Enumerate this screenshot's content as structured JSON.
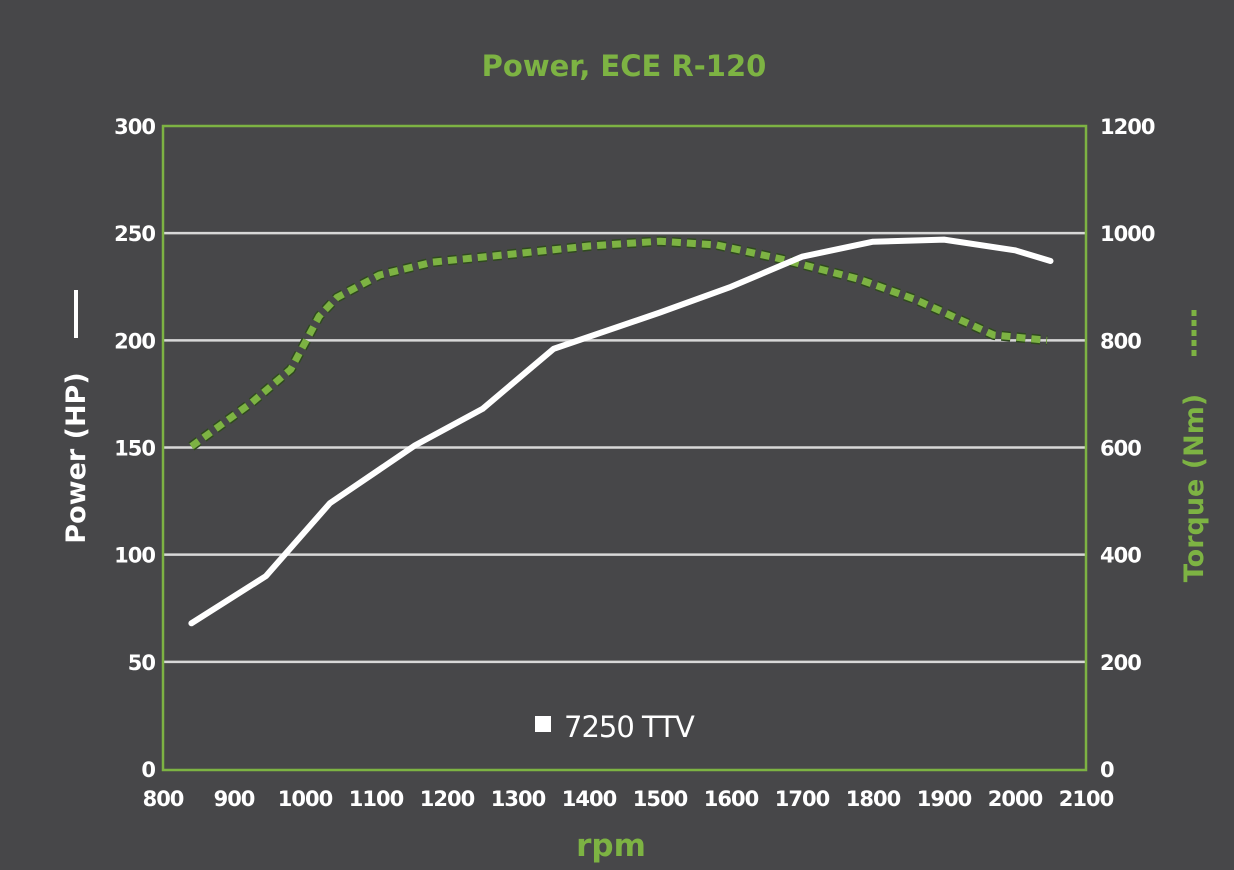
{
  "chart_data": {
    "type": "line",
    "title": "Power, ECE R-120",
    "xlabel": "rpm",
    "ylabel": "Power (HP)",
    "ylabel_right": "Torque (Nm)",
    "xlim": [
      800,
      2100
    ],
    "ylim": [
      0,
      300
    ],
    "ylim_right": [
      0,
      1200
    ],
    "x_ticks": [
      "800",
      "900",
      "1000",
      "1100",
      "1200",
      "1300",
      "1400",
      "1500",
      "1600",
      "1700",
      "1800",
      "1900",
      "2000",
      "2100"
    ],
    "y_ticks": [
      "0",
      "50",
      "100",
      "150",
      "200",
      "250",
      "300"
    ],
    "y_ticks_right": [
      "0",
      "200",
      "400",
      "600",
      "800",
      "1000",
      "1200"
    ],
    "grid": true,
    "legend": {
      "position": "bottom-center",
      "label": "7250 TTV"
    },
    "colors": {
      "background": "#474749",
      "accent": "#7db343",
      "power": "#ffffff",
      "torque": "#7db343",
      "grid": "#d8d8d8"
    },
    "series": [
      {
        "name": "Power (HP)",
        "axis": "left",
        "style": "solid",
        "x": [
          840,
          945,
          1035,
          1155,
          1250,
          1350,
          1500,
          1600,
          1700,
          1800,
          1900,
          2000,
          2050
        ],
        "y": [
          68,
          90,
          124,
          151,
          168,
          196,
          213,
          225,
          239,
          246,
          247,
          242,
          237
        ]
      },
      {
        "name": "Torque (Nm)",
        "axis": "right",
        "style": "dashed",
        "x": [
          840,
          925,
          980,
          1020,
          1045,
          1105,
          1180,
          1300,
          1400,
          1500,
          1580,
          1670,
          1780,
          1860,
          1970,
          2045
        ],
        "y": [
          602,
          684,
          746,
          845,
          880,
          922,
          946,
          962,
          976,
          985,
          978,
          952,
          914,
          876,
          810,
          800
        ]
      }
    ]
  }
}
